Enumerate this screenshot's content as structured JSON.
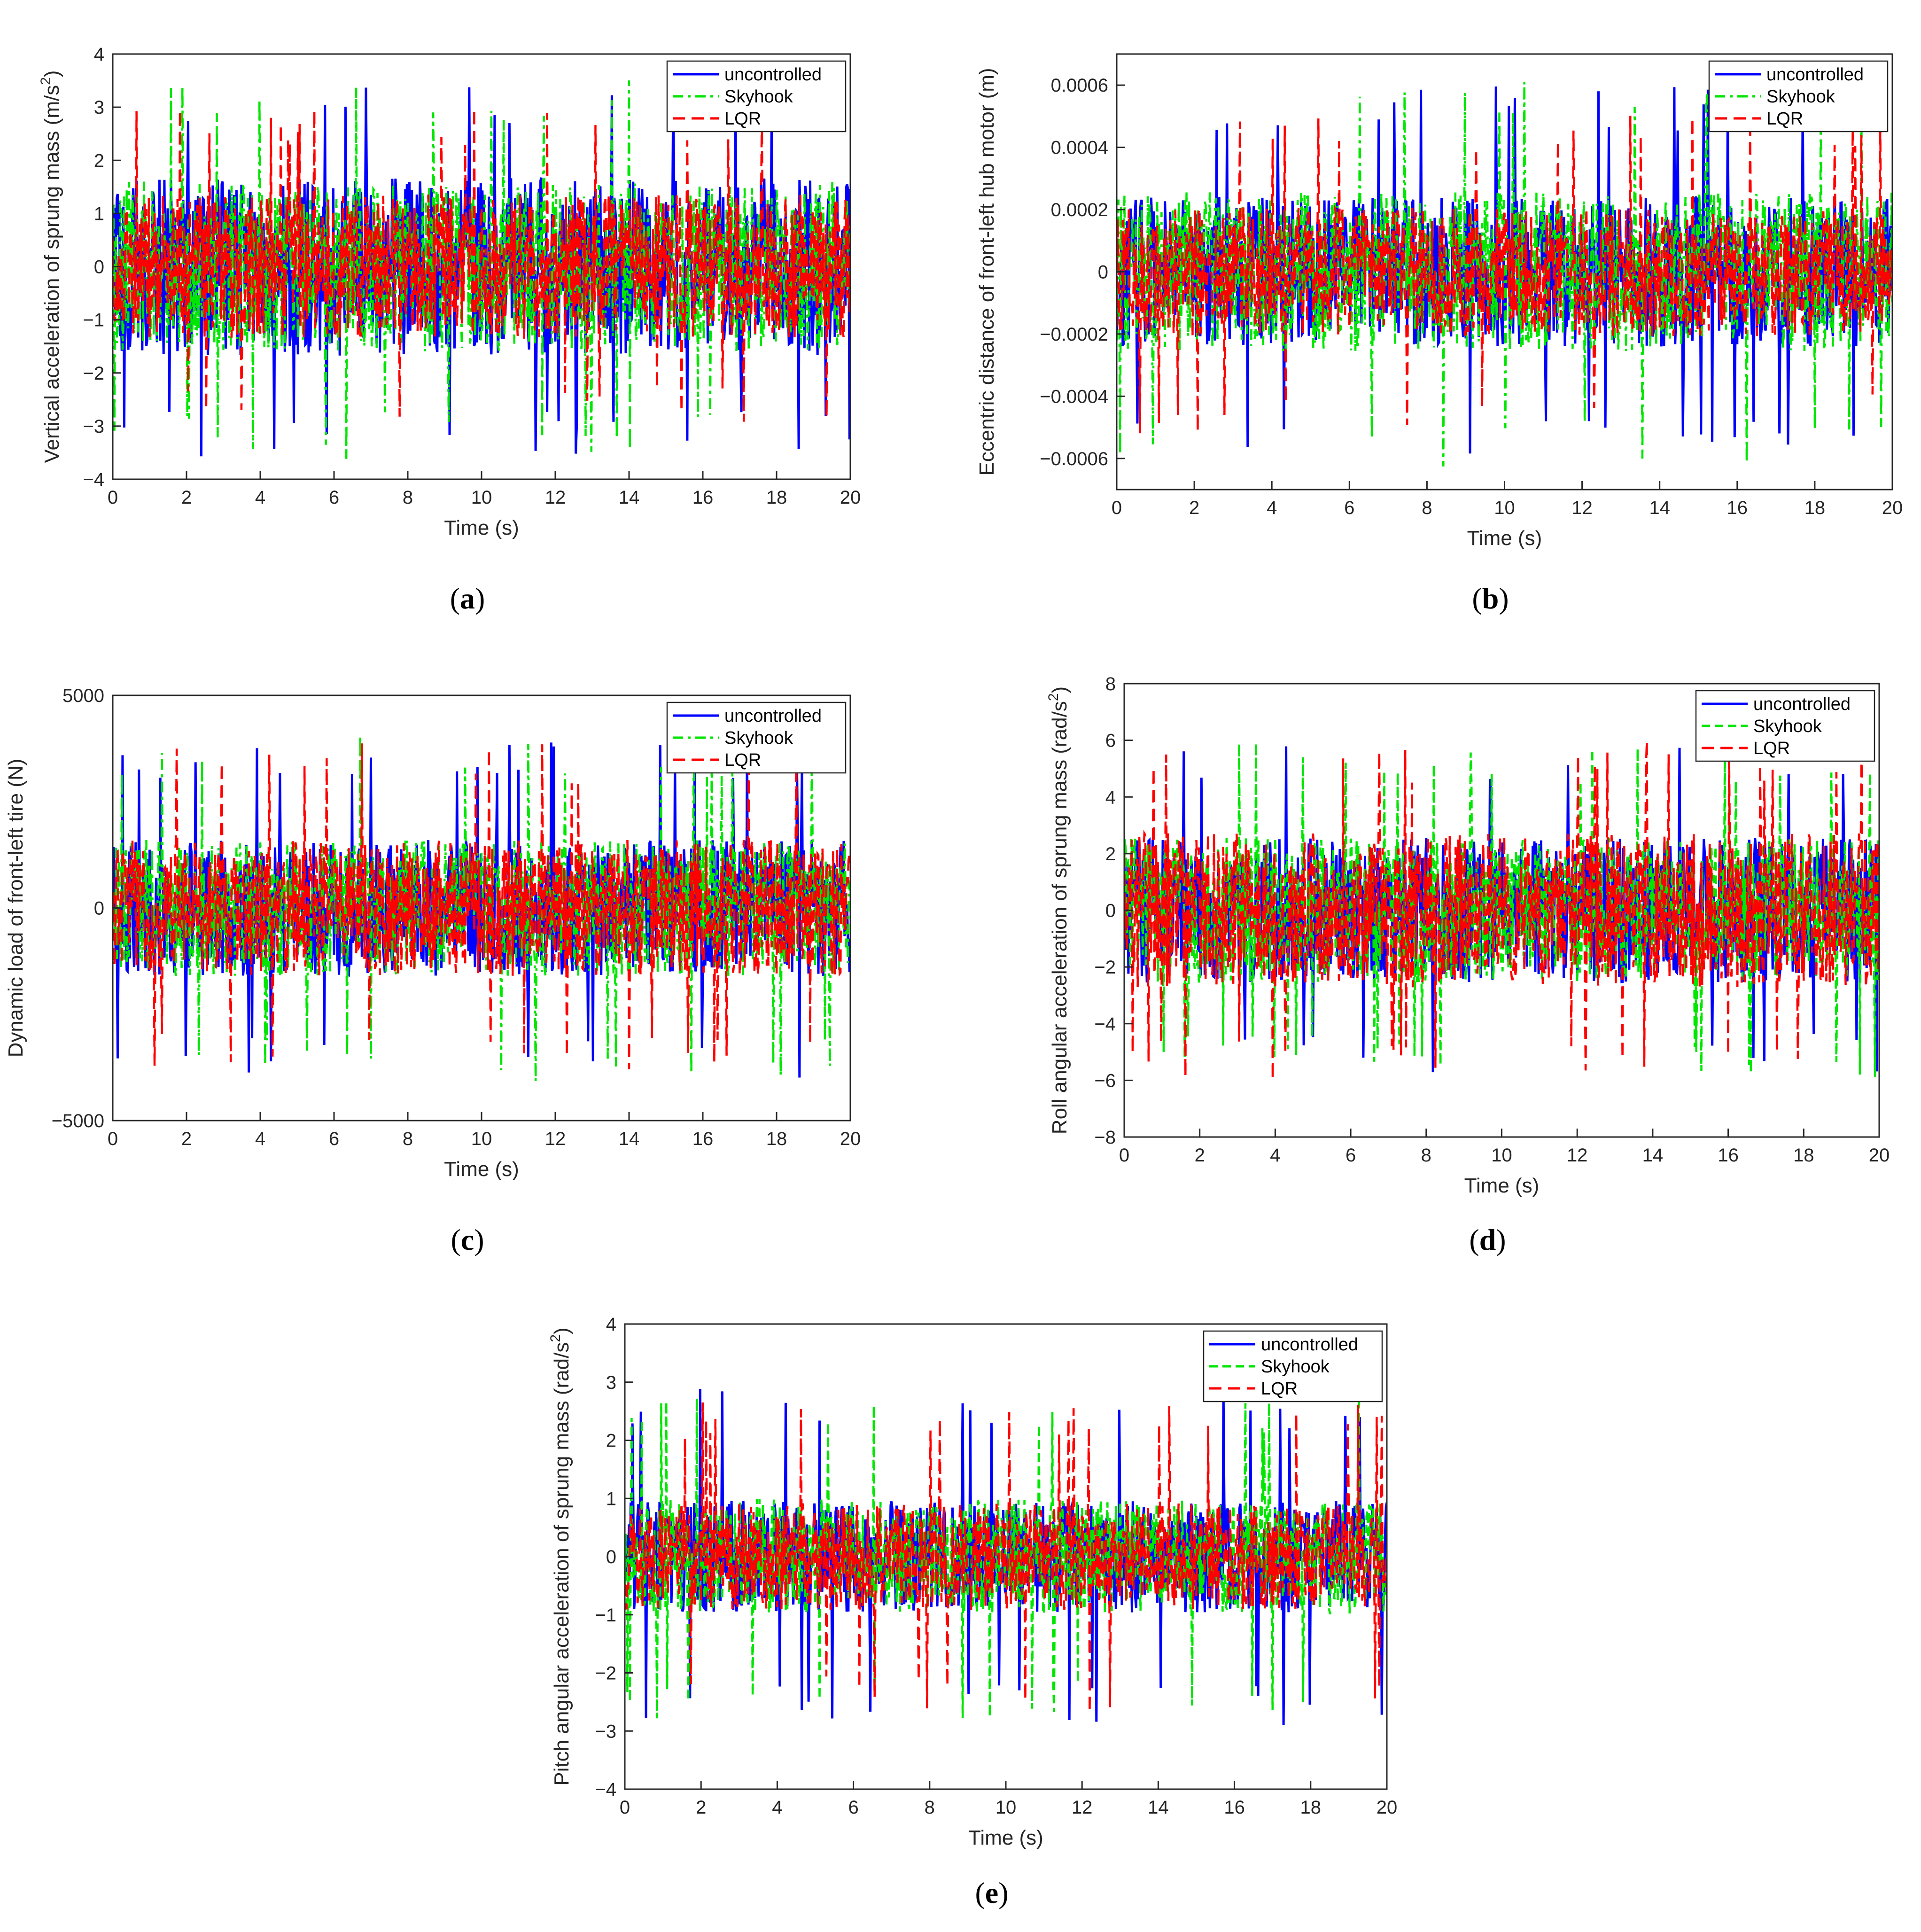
{
  "colors": {
    "uncontrolled": "#0000ff",
    "skyhook": "#00e600",
    "lqr": "#ff0000",
    "axis": "#262626"
  },
  "chart_data": [
    {
      "id": "a",
      "type": "line",
      "panel_label": "a",
      "xlabel": "Time (s)",
      "ylabel": "Vertical acceleration of sprung mass (m/s",
      "ylabel_sup": "2",
      "ylabel_end": ")",
      "xlim": [
        0,
        20
      ],
      "ylim": [
        -4,
        4
      ],
      "x_ticks": [
        "0",
        "2",
        "4",
        "6",
        "8",
        "10",
        "12",
        "14",
        "16",
        "18",
        "20"
      ],
      "y_ticks": [
        "−4",
        "−3",
        "−2",
        "−1",
        "0",
        "1",
        "2",
        "3",
        "4"
      ],
      "legend_position": "top-right",
      "series": [
        {
          "name": "uncontrolled",
          "style": "solid",
          "amplitude": 1.05,
          "peak": 3.6
        },
        {
          "name": "Skyhook",
          "style": "dashdot",
          "amplitude": 1.0,
          "peak": 3.65
        },
        {
          "name": "LQR",
          "style": "dashed",
          "amplitude": 0.85,
          "peak": 3.0
        }
      ]
    },
    {
      "id": "b",
      "type": "line",
      "panel_label": "b",
      "xlabel": "Time (s)",
      "ylabel": "Eccentric distance of front-left hub motor (m)",
      "ylabel_sup": "",
      "ylabel_end": "",
      "xlim": [
        0,
        20
      ],
      "ylim": [
        -0.0007,
        0.0007
      ],
      "x_ticks": [
        "0",
        "2",
        "4",
        "6",
        "8",
        "10",
        "12",
        "14",
        "16",
        "18",
        "20"
      ],
      "y_ticks": [
        "−0.0006",
        "−0.0004",
        "−0.0002",
        "0",
        "0.0002",
        "0.0004",
        "0.0006"
      ],
      "y_tick_values": [
        -0.0006,
        -0.0004,
        -0.0002,
        0,
        0.0002,
        0.0004,
        0.0006
      ],
      "legend_position": "top-right",
      "series": [
        {
          "name": "uncontrolled",
          "style": "solid",
          "amplitude": 0.00015,
          "peak": 0.0006
        },
        {
          "name": "Skyhook",
          "style": "dashdot",
          "amplitude": 0.00016,
          "peak": 0.00063
        },
        {
          "name": "LQR",
          "style": "dashed",
          "amplitude": 0.00013,
          "peak": 0.00052
        }
      ]
    },
    {
      "id": "c",
      "type": "line",
      "panel_label": "c",
      "xlabel": "Time (s)",
      "ylabel": "Dynamic load of front-left tire (N)",
      "ylabel_sup": "",
      "ylabel_end": "",
      "xlim": [
        0,
        20
      ],
      "ylim": [
        -5000,
        5000
      ],
      "x_ticks": [
        "0",
        "2",
        "4",
        "6",
        "8",
        "10",
        "12",
        "14",
        "16",
        "18",
        "20"
      ],
      "y_ticks": [
        "−5000",
        "0",
        "5000"
      ],
      "y_tick_values": [
        -5000,
        0,
        5000
      ],
      "legend_position": "top-right",
      "series": [
        {
          "name": "uncontrolled",
          "style": "solid",
          "amplitude": 1000,
          "peak": 4000
        },
        {
          "name": "Skyhook",
          "style": "dashdot",
          "amplitude": 1000,
          "peak": 4100
        },
        {
          "name": "LQR",
          "style": "dashed",
          "amplitude": 1000,
          "peak": 3900
        }
      ]
    },
    {
      "id": "d",
      "type": "line",
      "panel_label": "d",
      "xlabel": "Time (s)",
      "ylabel": "Roll angular acceleration of sprung mass (rad/s",
      "ylabel_sup": "2",
      "ylabel_end": ")",
      "xlim": [
        0,
        20
      ],
      "ylim": [
        -8,
        8
      ],
      "x_ticks": [
        "0",
        "2",
        "4",
        "6",
        "8",
        "10",
        "12",
        "14",
        "16",
        "18",
        "20"
      ],
      "y_ticks": [
        "−8",
        "−6",
        "−4",
        "−2",
        "0",
        "2",
        "4",
        "6",
        "8"
      ],
      "legend_position": "top-right",
      "series": [
        {
          "name": "uncontrolled",
          "style": "solid",
          "amplitude": 1.6,
          "peak": 5.8
        },
        {
          "name": "Skyhook",
          "style": "dashed",
          "amplitude": 1.6,
          "peak": 5.9
        },
        {
          "name": "LQR",
          "style": "dashed",
          "amplitude": 1.7,
          "peak": 6.0
        }
      ]
    },
    {
      "id": "e",
      "type": "line",
      "panel_label": "e",
      "xlabel": "Time (s)",
      "ylabel": "Pitch angular acceleration of sprung mass (rad/s",
      "ylabel_sup": "2",
      "ylabel_end": ")",
      "xlim": [
        0,
        20
      ],
      "ylim": [
        -4,
        4
      ],
      "x_ticks": [
        "0",
        "2",
        "4",
        "6",
        "8",
        "10",
        "12",
        "14",
        "16",
        "18",
        "20"
      ],
      "y_ticks": [
        "−4",
        "−3",
        "−2",
        "−1",
        "0",
        "1",
        "2",
        "3",
        "4"
      ],
      "legend_position": "top-right",
      "series": [
        {
          "name": "uncontrolled",
          "style": "solid",
          "amplitude": 0.6,
          "peak": 2.9
        },
        {
          "name": "Skyhook",
          "style": "dashed",
          "amplitude": 0.62,
          "peak": 2.8
        },
        {
          "name": "LQR",
          "style": "dashed",
          "amplitude": 0.58,
          "peak": 2.7
        }
      ]
    }
  ]
}
